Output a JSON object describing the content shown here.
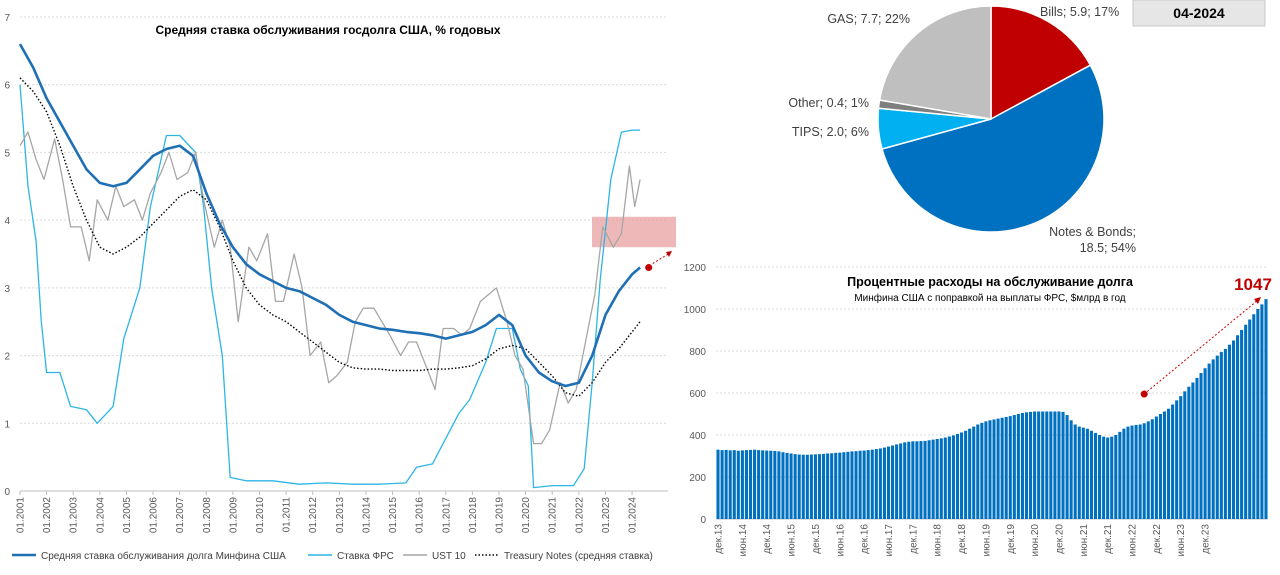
{
  "chart_data": [
    {
      "type": "line",
      "title": "Средняя ставка обслуживания госдолга США, % годовых",
      "ylim": [
        0,
        7
      ],
      "y_ticks": [
        "0",
        "1",
        "2",
        "3",
        "4",
        "5",
        "6",
        "7"
      ],
      "x_ticks": [
        "01.2001",
        "01.2002",
        "01.2003",
        "01.2004",
        "01.2005",
        "01.2006",
        "01.2007",
        "01.2008",
        "01.2009",
        "01.2010",
        "01.2011",
        "01.2012",
        "01.2013",
        "01.2014",
        "01.2015",
        "01.2016",
        "01.2017",
        "01.2018",
        "01.2019",
        "01.2020",
        "01.2021",
        "01.2022",
        "01.2023",
        "01.2024"
      ],
      "grid": true,
      "legend_position": "bottom",
      "highlight_band": [
        3.6,
        4.05
      ],
      "endpoint_marker": {
        "x": 2024.25,
        "y": 3.3
      },
      "series": [
        {
          "name": "Средняя ставка обслуживания долга Минфина США",
          "color": "#1f6fb5",
          "style": "solid-thick",
          "x": [
            2001,
            2001.5,
            2002,
            2002.5,
            2003,
            2003.5,
            2004,
            2004.5,
            2005,
            2005.5,
            2006,
            2006.5,
            2007,
            2007.5,
            2008,
            2008.5,
            2009,
            2009.5,
            2010,
            2010.5,
            2011,
            2011.5,
            2012,
            2012.5,
            2013,
            2013.5,
            2014,
            2014.5,
            2015,
            2015.5,
            2016,
            2016.5,
            2017,
            2017.5,
            2018,
            2018.5,
            2019,
            2019.5,
            2020,
            2020.5,
            2021,
            2021.5,
            2022,
            2022.5,
            2023,
            2023.5,
            2024,
            2024.3
          ],
          "y": [
            6.6,
            6.25,
            5.8,
            5.45,
            5.1,
            4.75,
            4.55,
            4.5,
            4.55,
            4.75,
            4.95,
            5.05,
            5.1,
            4.95,
            4.4,
            3.95,
            3.6,
            3.35,
            3.2,
            3.1,
            3.0,
            2.95,
            2.85,
            2.75,
            2.6,
            2.5,
            2.45,
            2.4,
            2.38,
            2.35,
            2.33,
            2.3,
            2.25,
            2.3,
            2.35,
            2.45,
            2.6,
            2.45,
            2.0,
            1.75,
            1.62,
            1.55,
            1.6,
            2.0,
            2.6,
            2.95,
            3.2,
            3.3
          ]
        },
        {
          "name": "Ставка ФРС",
          "color": "#2cb5e6",
          "style": "solid",
          "x": [
            2001,
            2001.3,
            2001.6,
            2001.8,
            2002,
            2002.5,
            2002.9,
            2003.5,
            2003.9,
            2004.5,
            2004.9,
            2005.5,
            2005.9,
            2006.5,
            2007,
            2007.6,
            2007.9,
            2008.2,
            2008.6,
            2008.9,
            2009.5,
            2010.5,
            2011.5,
            2012.5,
            2013.5,
            2014.5,
            2015.5,
            2015.9,
            2016.5,
            2016.9,
            2017.5,
            2017.9,
            2018.5,
            2018.9,
            2019.5,
            2019.8,
            2020.1,
            2020.3,
            2021,
            2021.8,
            2022.2,
            2022.5,
            2022.8,
            2023.2,
            2023.6,
            2024,
            2024.3
          ],
          "y": [
            6.0,
            4.5,
            3.7,
            2.5,
            1.75,
            1.75,
            1.25,
            1.2,
            1.0,
            1.25,
            2.25,
            3.0,
            4.2,
            5.25,
            5.25,
            5.0,
            4.2,
            3.0,
            2.0,
            0.2,
            0.15,
            0.15,
            0.1,
            0.12,
            0.1,
            0.1,
            0.12,
            0.35,
            0.4,
            0.7,
            1.15,
            1.35,
            1.9,
            2.4,
            2.4,
            1.8,
            1.55,
            0.05,
            0.08,
            0.08,
            0.33,
            1.6,
            3.1,
            4.6,
            5.3,
            5.33,
            5.33
          ]
        },
        {
          "name": "UST 10",
          "color": "#a6a6a6",
          "style": "solid",
          "x": [
            2001,
            2001.3,
            2001.6,
            2001.9,
            2002.3,
            2002.6,
            2002.9,
            2003.3,
            2003.6,
            2003.9,
            2004.3,
            2004.6,
            2004.9,
            2005.3,
            2005.6,
            2005.9,
            2006.3,
            2006.6,
            2006.9,
            2007.3,
            2007.6,
            2007.9,
            2008.3,
            2008.6,
            2008.9,
            2009.2,
            2009.6,
            2009.9,
            2010.3,
            2010.6,
            2010.9,
            2011.3,
            2011.6,
            2011.9,
            2012.3,
            2012.6,
            2012.9,
            2013.3,
            2013.6,
            2013.9,
            2014.3,
            2014.6,
            2014.9,
            2015.3,
            2015.6,
            2015.9,
            2016.3,
            2016.6,
            2016.9,
            2017.3,
            2017.6,
            2017.9,
            2018.3,
            2018.6,
            2018.9,
            2019.3,
            2019.6,
            2019.9,
            2020.3,
            2020.6,
            2020.9,
            2021.3,
            2021.6,
            2021.9,
            2022.3,
            2022.6,
            2022.9,
            2023.3,
            2023.6,
            2023.9,
            2024.1,
            2024.3
          ],
          "y": [
            5.1,
            5.3,
            4.9,
            4.6,
            5.2,
            4.6,
            3.9,
            3.9,
            3.4,
            4.3,
            4.0,
            4.5,
            4.2,
            4.3,
            4.0,
            4.4,
            4.7,
            5.0,
            4.6,
            4.7,
            5.0,
            4.3,
            3.6,
            4.0,
            3.6,
            2.5,
            3.6,
            3.4,
            3.8,
            2.8,
            2.8,
            3.5,
            3.0,
            2.0,
            2.2,
            1.6,
            1.7,
            1.9,
            2.5,
            2.7,
            2.7,
            2.5,
            2.3,
            2.0,
            2.2,
            2.2,
            1.8,
            1.5,
            2.4,
            2.4,
            2.3,
            2.4,
            2.8,
            2.9,
            3.0,
            2.5,
            2.0,
            1.8,
            0.7,
            0.7,
            0.9,
            1.6,
            1.3,
            1.5,
            2.3,
            2.9,
            3.9,
            3.6,
            3.8,
            4.8,
            4.2,
            4.6
          ]
        },
        {
          "name": "Treasury Notes (средняя ставка)",
          "color": "#000000",
          "style": "dotted",
          "x": [
            2001,
            2001.5,
            2002,
            2002.5,
            2003,
            2003.5,
            2004,
            2004.5,
            2005,
            2005.5,
            2006,
            2006.5,
            2007,
            2007.5,
            2008,
            2008.5,
            2009,
            2009.5,
            2010,
            2010.5,
            2011,
            2011.5,
            2012,
            2012.5,
            2013,
            2013.5,
            2014,
            2014.5,
            2015,
            2015.5,
            2016,
            2016.5,
            2017,
            2017.5,
            2018,
            2018.5,
            2019,
            2019.5,
            2020,
            2020.5,
            2021,
            2021.5,
            2022,
            2022.5,
            2023,
            2023.5,
            2024,
            2024.3
          ],
          "y": [
            6.1,
            5.9,
            5.6,
            5.1,
            4.5,
            4.0,
            3.6,
            3.5,
            3.6,
            3.75,
            3.95,
            4.15,
            4.35,
            4.45,
            4.3,
            3.9,
            3.4,
            3.0,
            2.75,
            2.6,
            2.5,
            2.35,
            2.2,
            2.05,
            1.9,
            1.82,
            1.8,
            1.8,
            1.78,
            1.78,
            1.78,
            1.8,
            1.8,
            1.82,
            1.85,
            1.95,
            2.1,
            2.15,
            2.1,
            1.9,
            1.7,
            1.45,
            1.4,
            1.6,
            1.9,
            2.1,
            2.35,
            2.5
          ]
        }
      ]
    },
    {
      "type": "pie",
      "badge": "04-2024",
      "slices": [
        {
          "label": "Bills; 5.9; 17%",
          "value": 5.9,
          "color": "#c00000"
        },
        {
          "label": "Notes & Bonds; 18.5; 54%",
          "label_lines": [
            "Notes & Bonds;",
            "18.5; 54%"
          ],
          "value": 18.5,
          "color": "#0070c0"
        },
        {
          "label": "TIPS; 2.0; 6%",
          "value": 2.0,
          "color": "#00b0f0"
        },
        {
          "label": "Other; 0.4; 1%",
          "value": 0.4,
          "color": "#7f7f7f"
        },
        {
          "label": "GAS; 7.7; 22%",
          "value": 7.7,
          "color": "#bfbfbf"
        }
      ]
    },
    {
      "type": "bar",
      "title": "Процентные расходы на обслуживание долга",
      "subtitle": "Минфина США с поправкой на выплаты ФРС, $млрд в год",
      "ylim": [
        0,
        1200
      ],
      "y_ticks": [
        "0",
        "200",
        "400",
        "600",
        "800",
        "1000",
        "1200"
      ],
      "x_ticks": [
        "дек.13",
        "июн.14",
        "дек.14",
        "июн.15",
        "дек.15",
        "июн.16",
        "дек.16",
        "июн.17",
        "дек.17",
        "июн.18",
        "дек.18",
        "июн.19",
        "дек.19",
        "июн.20",
        "дек.20",
        "июн.21",
        "дек.21",
        "июн.22",
        "дек.22",
        "июн.23",
        "дек.23"
      ],
      "color": "#0070c0",
      "last_value_label": "1047",
      "last_value_color": "#c00000",
      "trend_start": {
        "index": 105,
        "value": 595
      },
      "values": [
        330,
        328,
        329,
        327,
        328,
        325,
        327,
        328,
        329,
        330,
        328,
        327,
        326,
        325,
        324,
        322,
        318,
        315,
        312,
        309,
        307,
        306,
        306,
        307,
        308,
        309,
        310,
        312,
        313,
        315,
        316,
        318,
        320,
        322,
        323,
        325,
        326,
        328,
        330,
        333,
        336,
        340,
        345,
        350,
        355,
        360,
        365,
        368,
        370,
        370,
        371,
        372,
        375,
        378,
        381,
        384,
        388,
        393,
        398,
        405,
        412,
        420,
        430,
        440,
        450,
        458,
        465,
        470,
        474,
        478,
        482,
        486,
        490,
        495,
        500,
        505,
        508,
        510,
        512,
        512,
        512,
        512,
        512,
        512,
        512,
        510,
        495,
        470,
        450,
        440,
        435,
        430,
        420,
        410,
        400,
        392,
        388,
        392,
        400,
        415,
        430,
        440,
        445,
        448,
        450,
        456,
        465,
        475,
        488,
        500,
        512,
        525,
        545,
        565,
        585,
        608,
        630,
        650,
        672,
        695,
        718,
        740,
        760,
        778,
        795,
        810,
        830,
        850,
        875,
        900,
        925,
        950,
        975,
        1000,
        1022,
        1047
      ]
    }
  ],
  "legend": [
    {
      "label": "Средняя ставка обслуживания долга Минфина США",
      "style": "solid-thick",
      "color": "#1f6fb5"
    },
    {
      "label": "Ставка ФРС",
      "style": "solid",
      "color": "#2cb5e6"
    },
    {
      "label": "UST 10",
      "style": "solid",
      "color": "#a6a6a6"
    },
    {
      "label": "Treasury Notes (средняя ставка)",
      "style": "dotted",
      "color": "#000000"
    }
  ]
}
